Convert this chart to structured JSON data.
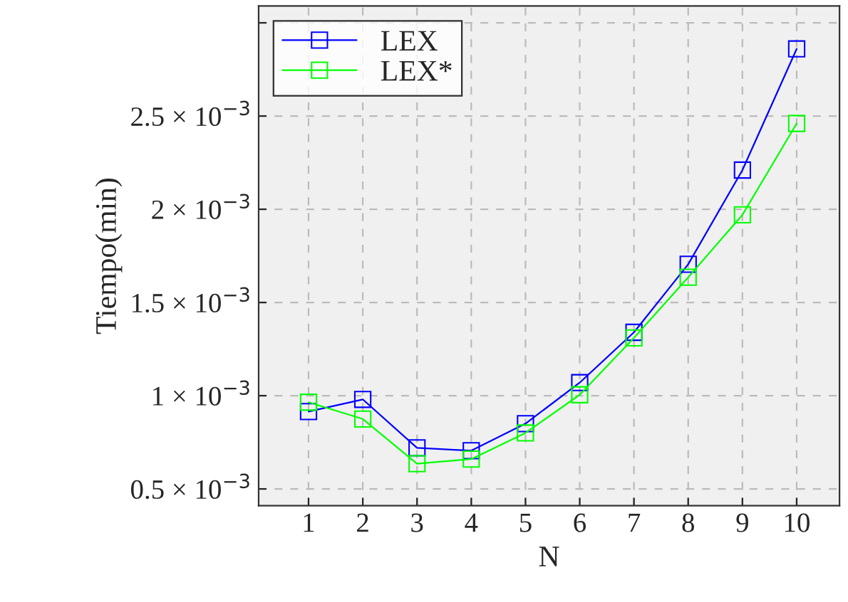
{
  "chart_data": {
    "type": "line",
    "xlabel": "N",
    "ylabel": "Tiempo(min)",
    "x": [
      1,
      2,
      3,
      4,
      5,
      6,
      7,
      8,
      9,
      10
    ],
    "series": [
      {
        "name": "LEX",
        "color": "#0000ff",
        "values": [
          0.000915,
          0.00098,
          0.00072,
          0.000705,
          0.00085,
          0.00107,
          0.00134,
          0.001705,
          0.00221,
          0.00286
        ]
      },
      {
        "name": "LEX*",
        "color": "#00ff00",
        "values": [
          0.000965,
          0.000875,
          0.000635,
          0.00066,
          0.0008,
          0.001005,
          0.00131,
          0.001635,
          0.00197,
          0.00246
        ]
      }
    ],
    "xlim": [
      0.08,
      10.79
    ],
    "xticks": [
      1,
      2,
      3,
      4,
      5,
      6,
      7,
      8,
      9,
      10
    ],
    "ylim": [
      0.00041,
      0.00309
    ],
    "yticks": [
      {
        "value": 0.0005,
        "label": "0.5 × 10$^{−3}$"
      },
      {
        "value": 0.001,
        "label": "1 × 10$^{−3}$"
      },
      {
        "value": 0.0015,
        "label": "1.5 × 10$^{−3}$"
      },
      {
        "value": 0.002,
        "label": "2 × 10$^{−3}$"
      },
      {
        "value": 0.0025,
        "label": "2.5 × 10$^{−3}$"
      },
      {
        "value": 0.003,
        "label": null
      }
    ],
    "grid": true,
    "legend": "top left",
    "marker": "square",
    "line_style": "solid"
  }
}
